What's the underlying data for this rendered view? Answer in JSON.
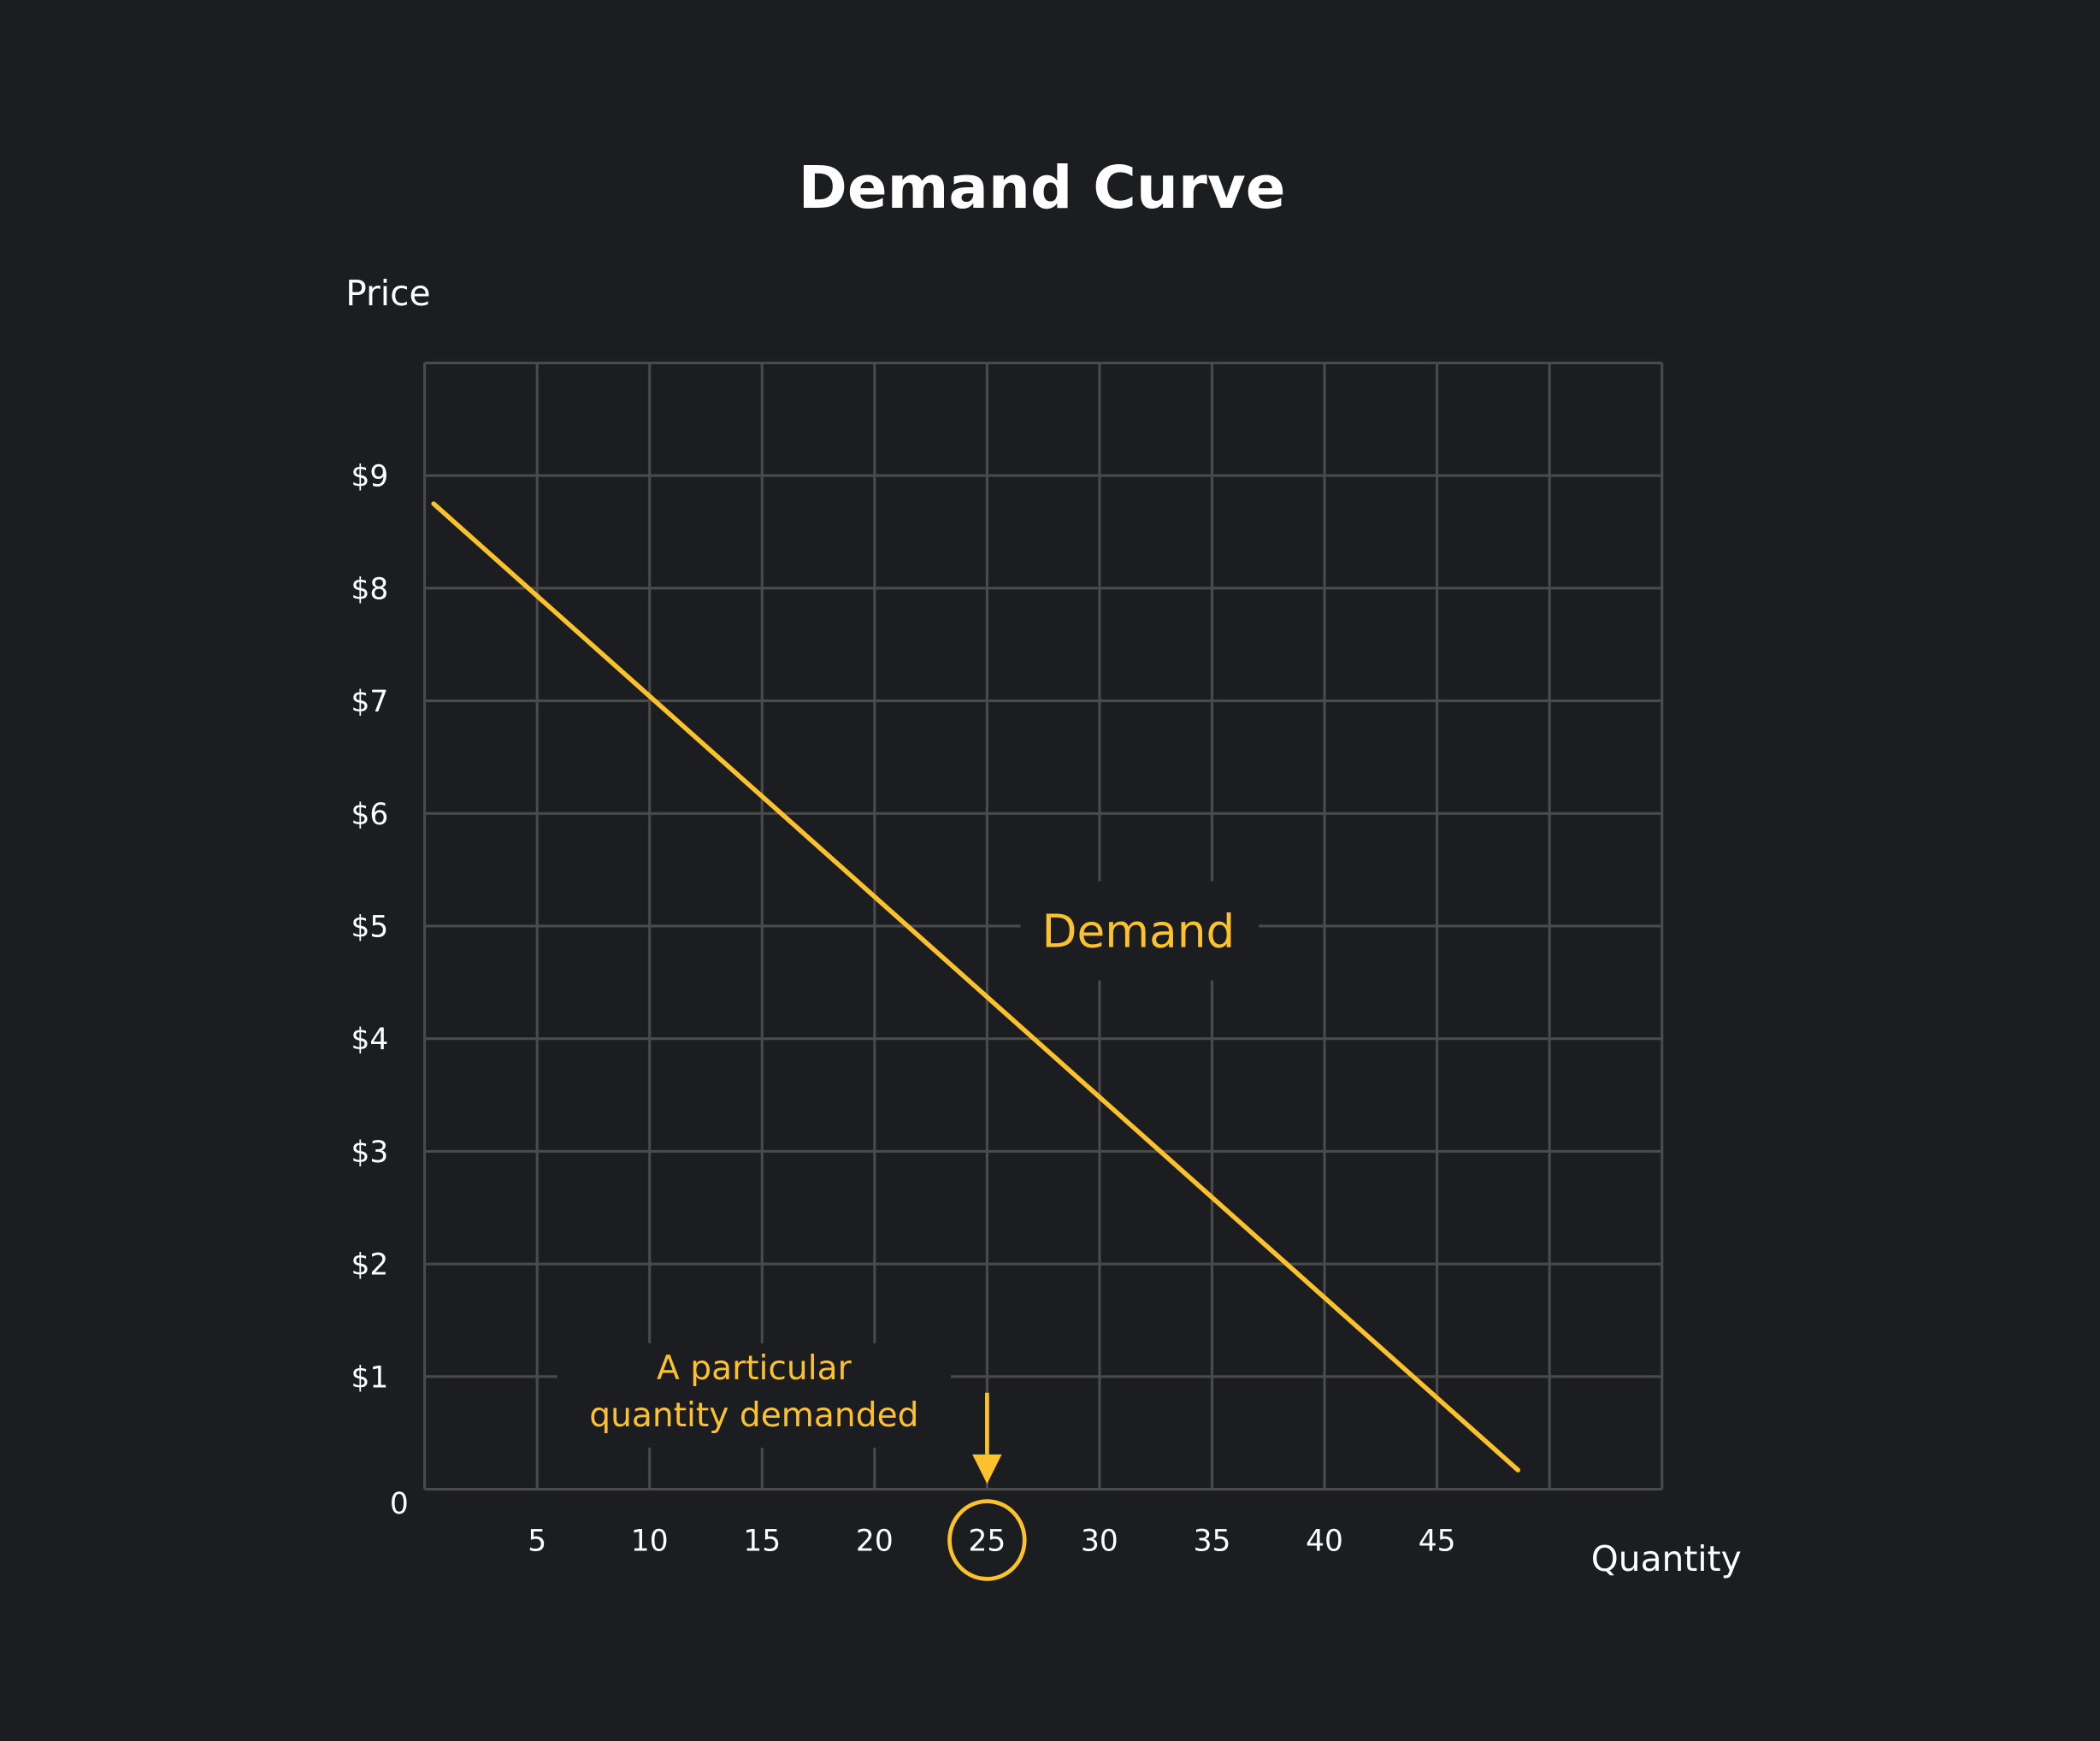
{
  "colors": {
    "background": "#1c1d21",
    "grid": "#4a4a4a",
    "accent": "#fcc22d",
    "text": "#ffffff"
  },
  "chart_data": {
    "type": "line",
    "title": "Demand Curve",
    "xlabel": "Quantity",
    "ylabel": "Price",
    "xlim": [
      0,
      55
    ],
    "ylim": [
      0,
      10
    ],
    "grid": true,
    "x_ticks": [
      5,
      10,
      15,
      20,
      25,
      30,
      35,
      40,
      45
    ],
    "x_tick_labels": [
      "5",
      "10",
      "15",
      "20",
      "25",
      "30",
      "35",
      "40",
      "45"
    ],
    "y_ticks": [
      0,
      1,
      2,
      3,
      4,
      5,
      6,
      7,
      8,
      9
    ],
    "y_tick_labels": [
      "0",
      "$1",
      "$2",
      "$3",
      "$4",
      "$5",
      "$6",
      "$7",
      "$8",
      "$9"
    ],
    "series": [
      {
        "name": "Demand",
        "x": [
          0.4,
          48.6
        ],
        "y": [
          8.75,
          0.17
        ]
      }
    ],
    "annotations": {
      "series_label": "Demand",
      "highlight_x": 25,
      "highlight_label_line1": "A particular",
      "highlight_label_line2": "quantity demanded"
    }
  }
}
